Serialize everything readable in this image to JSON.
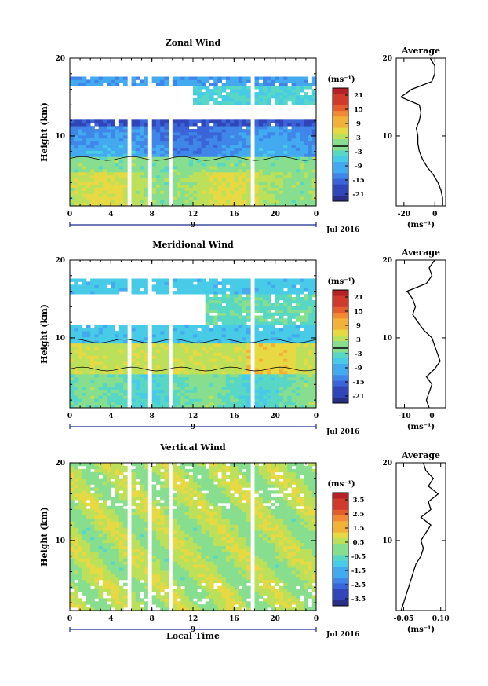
{
  "figure": {
    "date_label": "Jul 2016",
    "day_label": "9",
    "xlabel": "Local Time",
    "ylabel": "Height (km)",
    "unit_label": "(ms⁻¹)",
    "average_title": "Average"
  },
  "chart_data": [
    {
      "type": "heatmap",
      "title": "Zonal Wind",
      "xlabel": "",
      "ylabel": "Height (km)",
      "x_ticks": [
        "0",
        "4",
        "8",
        "12",
        "16",
        "20",
        "0"
      ],
      "xlim": [
        0,
        24
      ],
      "y_ticks": [
        10,
        20
      ],
      "ylim": [
        1,
        20
      ],
      "colorbar": {
        "unit": "(ms⁻¹)",
        "ticks": [
          "21",
          "15",
          "9",
          "3",
          "-3",
          "-9",
          "-15",
          "-21"
        ],
        "range": [
          -24,
          24
        ],
        "zero_line": true
      },
      "profile": {
        "title": "Average",
        "xlabel": "(ms⁻¹)",
        "x_ticks": [
          "-20",
          "0"
        ],
        "xlim": [
          -25,
          7
        ],
        "y": [
          1,
          2,
          3,
          4,
          5,
          6,
          7,
          8,
          9,
          10,
          11,
          12,
          13,
          14,
          15,
          16,
          17,
          18,
          19,
          20
        ],
        "x": [
          5,
          5,
          4,
          2,
          -1,
          -5,
          -8,
          -10,
          -11,
          -11,
          -12,
          -10,
          -9,
          -10,
          -22,
          -15,
          -2,
          0,
          0,
          -3
        ]
      }
    },
    {
      "type": "heatmap",
      "title": "Meridional Wind",
      "xlabel": "",
      "ylabel": "Height (km)",
      "x_ticks": [
        "0",
        "4",
        "8",
        "12",
        "16",
        "20",
        "0"
      ],
      "xlim": [
        0,
        24
      ],
      "y_ticks": [
        10,
        20
      ],
      "ylim": [
        1,
        20
      ],
      "colorbar": {
        "unit": "(ms⁻¹)",
        "ticks": [
          "21",
          "15",
          "9",
          "3",
          "-3",
          "-9",
          "-15",
          "-21"
        ],
        "range": [
          -24,
          24
        ],
        "zero_line": true
      },
      "profile": {
        "title": "Average",
        "xlabel": "(ms⁻¹)",
        "x_ticks": [
          "-10",
          "0"
        ],
        "xlim": [
          -13,
          5
        ],
        "y": [
          1,
          2,
          3,
          4,
          5,
          6,
          7,
          8,
          9,
          10,
          11,
          12,
          13,
          14,
          15,
          16,
          17,
          18,
          19,
          20
        ],
        "x": [
          -1,
          -2,
          -1,
          0,
          -2,
          1,
          3,
          2,
          1,
          0,
          -3,
          -5,
          -7,
          -6,
          -7,
          -9,
          -2,
          0,
          -1,
          1
        ]
      }
    },
    {
      "type": "heatmap",
      "title": "Vertical Wind",
      "xlabel": "Local Time",
      "ylabel": "Height (km)",
      "x_ticks": [
        "0",
        "4",
        "8",
        "12",
        "16",
        "20",
        "0"
      ],
      "xlim": [
        0,
        24
      ],
      "y_ticks": [
        10,
        20
      ],
      "ylim": [
        1,
        20
      ],
      "colorbar": {
        "unit": "(ms⁻¹)",
        "ticks": [
          "3.5",
          "2.5",
          "1.5",
          "0.5",
          "-0.5",
          "-1.5",
          "-2.5",
          "-3.5"
        ],
        "range": [
          -4,
          4
        ],
        "zero_line": false
      },
      "profile": {
        "title": "Average",
        "xlabel": "(ms⁻¹)",
        "x_ticks": [
          "-0.05",
          "0.10"
        ],
        "xlim": [
          -0.08,
          0.12
        ],
        "y": [
          1,
          2,
          3,
          4,
          5,
          6,
          7,
          8,
          9,
          10,
          11,
          12,
          13,
          14,
          15,
          16,
          17,
          18,
          19,
          20
        ],
        "x": [
          -0.06,
          -0.05,
          -0.04,
          -0.03,
          -0.02,
          -0.01,
          0.0,
          0.02,
          0.03,
          0.02,
          0.04,
          0.06,
          0.02,
          0.06,
          0.05,
          0.09,
          0.05,
          0.07,
          0.04,
          0.03
        ]
      }
    }
  ]
}
